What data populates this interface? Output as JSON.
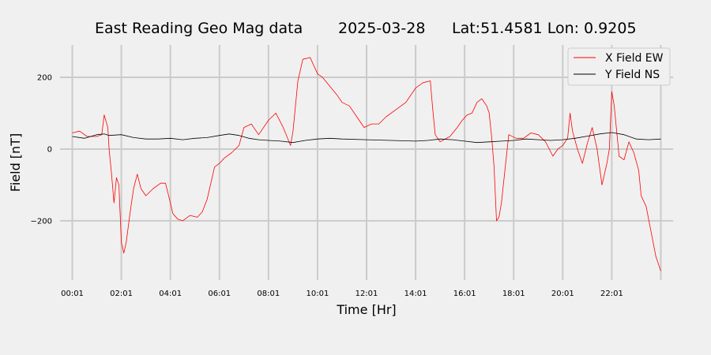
{
  "title": {
    "station": "East Reading Geo Mag data",
    "date": "2025-03-28",
    "location": "Lat:51.4581  Lon: 0.9205"
  },
  "chart_data": {
    "type": "line",
    "xlabel": "Time  [Hr]",
    "ylabel": "Field  [nT]",
    "xlim": [
      -0.5,
      24.5
    ],
    "ylim": [
      -365,
      290
    ],
    "x_ticks": [
      0,
      2,
      4,
      6,
      8,
      10,
      12,
      14,
      16,
      18,
      20,
      22,
      24
    ],
    "x_tick_labels": [
      "00:01",
      "02:01",
      "04:01",
      "06:01",
      "08:01",
      "10:01",
      "12:01",
      "14:01",
      "16:01",
      "18:01",
      "20:01",
      "22:01",
      ""
    ],
    "y_ticks": [
      -200,
      0,
      200
    ],
    "y_tick_labels": [
      "−200",
      "0",
      "200"
    ],
    "grid": true,
    "legend_position": "top-right",
    "series": [
      {
        "name": "X Field EW",
        "color": "#ff0000",
        "x": [
          0,
          0.3,
          0.6,
          1.0,
          1.2,
          1.3,
          1.45,
          1.5,
          1.6,
          1.7,
          1.8,
          1.9,
          2.0,
          2.1,
          2.2,
          2.35,
          2.5,
          2.65,
          2.8,
          3.0,
          3.3,
          3.6,
          3.8,
          4.0,
          4.1,
          4.3,
          4.5,
          4.8,
          5.1,
          5.3,
          5.5,
          5.8,
          6.0,
          6.2,
          6.5,
          6.8,
          7.0,
          7.3,
          7.6,
          8.0,
          8.3,
          8.6,
          8.9,
          9.0,
          9.2,
          9.4,
          9.7,
          10.0,
          10.2,
          10.5,
          10.8,
          11.0,
          11.3,
          11.6,
          11.9,
          12.2,
          12.5,
          12.8,
          13.2,
          13.6,
          14.0,
          14.3,
          14.6,
          14.7,
          14.8,
          15.0,
          15.4,
          15.7,
          15.9,
          16.1,
          16.3,
          16.5,
          16.7,
          16.9,
          17.0,
          17.1,
          17.2,
          17.3,
          17.4,
          17.5,
          17.8,
          18.1,
          18.4,
          18.7,
          19.0,
          19.3,
          19.6,
          19.8,
          20.0,
          20.2,
          20.3,
          20.4,
          20.6,
          20.8,
          21.0,
          21.2,
          21.4,
          21.6,
          21.8,
          21.9,
          22.0,
          22.1,
          22.3,
          22.5,
          22.7,
          22.9,
          23.1,
          23.2,
          23.4,
          23.6,
          23.8,
          24.0
        ],
        "y": [
          45,
          50,
          35,
          35,
          40,
          95,
          60,
          0,
          -70,
          -150,
          -80,
          -100,
          -260,
          -290,
          -260,
          -180,
          -110,
          -70,
          -110,
          -130,
          -110,
          -95,
          -95,
          -150,
          -180,
          -195,
          -200,
          -185,
          -190,
          -175,
          -140,
          -50,
          -40,
          -25,
          -10,
          10,
          60,
          70,
          40,
          80,
          100,
          60,
          10,
          50,
          190,
          250,
          255,
          210,
          200,
          175,
          150,
          130,
          120,
          90,
          60,
          70,
          70,
          90,
          110,
          130,
          170,
          185,
          190,
          110,
          40,
          20,
          35,
          60,
          80,
          95,
          100,
          130,
          140,
          120,
          100,
          35,
          -50,
          -200,
          -190,
          -150,
          40,
          30,
          30,
          45,
          40,
          20,
          -20,
          0,
          10,
          30,
          100,
          50,
          0,
          -40,
          15,
          60,
          0,
          -100,
          -40,
          0,
          160,
          120,
          -20,
          -30,
          20,
          -10,
          -60,
          -130,
          -160,
          -230,
          -300,
          -340
        ]
      },
      {
        "name": "Y Field NS",
        "color": "#000000",
        "x": [
          0,
          0.5,
          1.0,
          1.3,
          1.5,
          2.0,
          2.5,
          3.0,
          3.5,
          4.0,
          4.5,
          5.0,
          5.5,
          6.0,
          6.4,
          6.8,
          7.2,
          7.6,
          8.0,
          8.5,
          9.0,
          9.5,
          10.0,
          10.5,
          11.0,
          12.0,
          13.0,
          14.0,
          14.5,
          15.0,
          15.5,
          16.0,
          16.5,
          17.0,
          17.5,
          18.0,
          18.5,
          19.0,
          19.5,
          20.0,
          20.5,
          21.0,
          21.5,
          22.0,
          22.5,
          23.0,
          23.5,
          24.0
        ],
        "y": [
          35,
          30,
          40,
          42,
          38,
          40,
          32,
          28,
          28,
          30,
          26,
          30,
          32,
          38,
          42,
          38,
          30,
          26,
          24,
          22,
          18,
          24,
          28,
          30,
          28,
          26,
          24,
          22,
          24,
          28,
          26,
          22,
          18,
          20,
          22,
          24,
          28,
          26,
          24,
          26,
          30,
          36,
          42,
          46,
          40,
          28,
          26,
          28
        ]
      }
    ]
  }
}
